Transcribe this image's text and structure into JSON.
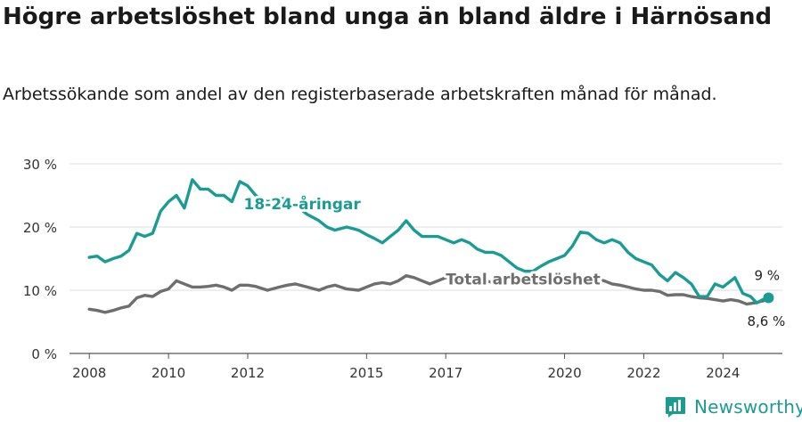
{
  "header": {
    "title": "Högre arbetslöshet bland unga än bland äldre i Härnösand",
    "subtitle": "Arbetssökande som andel av den registerbaserade arbetskraften månad för månad."
  },
  "brand": {
    "name": "Newsworthy",
    "icon": "newsworthy-logo-icon",
    "color": "#1a9c93"
  },
  "chart_data": {
    "type": "line",
    "x_ticks": [
      "2008",
      "2010",
      "2012",
      "2015",
      "2017",
      "2020",
      "2022",
      "2024"
    ],
    "y_ticks": [
      "0 %",
      "10 %",
      "20 %",
      "30 %"
    ],
    "ylim": [
      0,
      30
    ],
    "xlim": [
      2007.5,
      2025.5
    ],
    "grid": true,
    "series": [
      {
        "name": "18-24-åringar",
        "color": "#1a9c93",
        "end_label": "9 %",
        "points": [
          [
            2008.0,
            15.2
          ],
          [
            2008.2,
            15.4
          ],
          [
            2008.4,
            14.5
          ],
          [
            2008.6,
            15.0
          ],
          [
            2008.8,
            15.4
          ],
          [
            2009.0,
            16.3
          ],
          [
            2009.2,
            19.0
          ],
          [
            2009.4,
            18.5
          ],
          [
            2009.6,
            19.0
          ],
          [
            2009.8,
            22.5
          ],
          [
            2010.0,
            24.0
          ],
          [
            2010.2,
            25.0
          ],
          [
            2010.4,
            23.0
          ],
          [
            2010.6,
            27.5
          ],
          [
            2010.8,
            26.0
          ],
          [
            2011.0,
            26.0
          ],
          [
            2011.2,
            25.0
          ],
          [
            2011.4,
            25.0
          ],
          [
            2011.6,
            24.0
          ],
          [
            2011.8,
            27.2
          ],
          [
            2012.0,
            26.5
          ],
          [
            2012.2,
            25.0
          ],
          [
            2012.5,
            24.0
          ],
          [
            2012.8,
            24.5
          ],
          [
            2013.0,
            24.5
          ],
          [
            2013.2,
            23.5
          ],
          [
            2013.5,
            22.0
          ],
          [
            2013.8,
            21.0
          ],
          [
            2014.0,
            20.0
          ],
          [
            2014.2,
            19.5
          ],
          [
            2014.5,
            20.0
          ],
          [
            2014.8,
            19.5
          ],
          [
            2015.0,
            18.8
          ],
          [
            2015.2,
            18.2
          ],
          [
            2015.4,
            17.5
          ],
          [
            2015.6,
            18.5
          ],
          [
            2015.8,
            19.5
          ],
          [
            2016.0,
            21.0
          ],
          [
            2016.2,
            19.5
          ],
          [
            2016.4,
            18.5
          ],
          [
            2016.6,
            18.5
          ],
          [
            2016.8,
            18.5
          ],
          [
            2017.0,
            18.0
          ],
          [
            2017.2,
            17.5
          ],
          [
            2017.4,
            18.0
          ],
          [
            2017.6,
            17.5
          ],
          [
            2017.8,
            16.5
          ],
          [
            2018.0,
            16.0
          ],
          [
            2018.2,
            16.0
          ],
          [
            2018.4,
            15.5
          ],
          [
            2018.6,
            14.5
          ],
          [
            2018.8,
            13.5
          ],
          [
            2019.0,
            13.0
          ],
          [
            2019.2,
            13.0
          ],
          [
            2019.4,
            13.8
          ],
          [
            2019.6,
            14.5
          ],
          [
            2019.8,
            15.0
          ],
          [
            2020.0,
            15.5
          ],
          [
            2020.2,
            17.0
          ],
          [
            2020.4,
            19.2
          ],
          [
            2020.6,
            19.0
          ],
          [
            2020.8,
            18.0
          ],
          [
            2021.0,
            17.5
          ],
          [
            2021.2,
            18.0
          ],
          [
            2021.4,
            17.5
          ],
          [
            2021.6,
            16.0
          ],
          [
            2021.8,
            15.0
          ],
          [
            2022.0,
            14.5
          ],
          [
            2022.2,
            14.0
          ],
          [
            2022.4,
            12.5
          ],
          [
            2022.6,
            11.5
          ],
          [
            2022.8,
            12.8
          ],
          [
            2023.0,
            12.0
          ],
          [
            2023.2,
            11.0
          ],
          [
            2023.4,
            9.0
          ],
          [
            2023.6,
            9.0
          ],
          [
            2023.8,
            11.0
          ],
          [
            2024.0,
            10.5
          ],
          [
            2024.2,
            11.5
          ],
          [
            2024.3,
            12.0
          ],
          [
            2024.5,
            9.5
          ],
          [
            2024.7,
            9.0
          ],
          [
            2024.85,
            8.0
          ],
          [
            2025.0,
            8.5
          ],
          [
            2025.15,
            8.8
          ]
        ]
      },
      {
        "name": "Total arbetslöshet",
        "color": "#6e6e6e",
        "end_label": "8,6 %",
        "points": [
          [
            2008.0,
            7.0
          ],
          [
            2008.2,
            6.8
          ],
          [
            2008.4,
            6.5
          ],
          [
            2008.6,
            6.8
          ],
          [
            2008.8,
            7.2
          ],
          [
            2009.0,
            7.5
          ],
          [
            2009.2,
            8.8
          ],
          [
            2009.4,
            9.2
          ],
          [
            2009.6,
            9.0
          ],
          [
            2009.8,
            9.8
          ],
          [
            2010.0,
            10.2
          ],
          [
            2010.2,
            11.5
          ],
          [
            2010.4,
            11.0
          ],
          [
            2010.6,
            10.5
          ],
          [
            2010.8,
            10.5
          ],
          [
            2011.0,
            10.6
          ],
          [
            2011.2,
            10.8
          ],
          [
            2011.4,
            10.5
          ],
          [
            2011.6,
            10.0
          ],
          [
            2011.8,
            10.8
          ],
          [
            2012.0,
            10.8
          ],
          [
            2012.2,
            10.6
          ],
          [
            2012.5,
            10.0
          ],
          [
            2012.8,
            10.5
          ],
          [
            2013.0,
            10.8
          ],
          [
            2013.2,
            11.0
          ],
          [
            2013.5,
            10.5
          ],
          [
            2013.8,
            10.0
          ],
          [
            2014.0,
            10.5
          ],
          [
            2014.2,
            10.8
          ],
          [
            2014.5,
            10.2
          ],
          [
            2014.8,
            10.0
          ],
          [
            2015.0,
            10.5
          ],
          [
            2015.2,
            11.0
          ],
          [
            2015.4,
            11.2
          ],
          [
            2015.6,
            11.0
          ],
          [
            2015.8,
            11.5
          ],
          [
            2016.0,
            12.3
          ],
          [
            2016.2,
            12.0
          ],
          [
            2016.4,
            11.5
          ],
          [
            2016.6,
            11.0
          ],
          [
            2016.8,
            11.5
          ],
          [
            2017.0,
            12.0
          ],
          [
            2017.2,
            11.8
          ],
          [
            2017.4,
            11.5
          ],
          [
            2017.6,
            11.5
          ],
          [
            2017.8,
            11.5
          ],
          [
            2018.0,
            11.5
          ],
          [
            2018.2,
            11.2
          ],
          [
            2018.4,
            11.0
          ],
          [
            2018.6,
            11.0
          ],
          [
            2018.8,
            11.0
          ],
          [
            2019.0,
            11.5
          ],
          [
            2019.2,
            11.5
          ],
          [
            2019.4,
            11.0
          ],
          [
            2019.6,
            11.0
          ],
          [
            2019.8,
            11.0
          ],
          [
            2020.0,
            11.5
          ],
          [
            2020.2,
            12.0
          ],
          [
            2020.4,
            12.0
          ],
          [
            2020.6,
            12.0
          ],
          [
            2020.8,
            11.8
          ],
          [
            2021.0,
            11.5
          ],
          [
            2021.2,
            11.0
          ],
          [
            2021.4,
            10.8
          ],
          [
            2021.6,
            10.5
          ],
          [
            2021.8,
            10.2
          ],
          [
            2022.0,
            10.0
          ],
          [
            2022.2,
            10.0
          ],
          [
            2022.4,
            9.8
          ],
          [
            2022.6,
            9.2
          ],
          [
            2022.8,
            9.3
          ],
          [
            2023.0,
            9.3
          ],
          [
            2023.2,
            9.0
          ],
          [
            2023.4,
            8.8
          ],
          [
            2023.6,
            8.7
          ],
          [
            2023.8,
            8.5
          ],
          [
            2024.0,
            8.3
          ],
          [
            2024.2,
            8.5
          ],
          [
            2024.4,
            8.3
          ],
          [
            2024.6,
            7.8
          ],
          [
            2024.8,
            8.0
          ],
          [
            2025.0,
            8.3
          ],
          [
            2025.15,
            8.6
          ]
        ]
      }
    ]
  }
}
